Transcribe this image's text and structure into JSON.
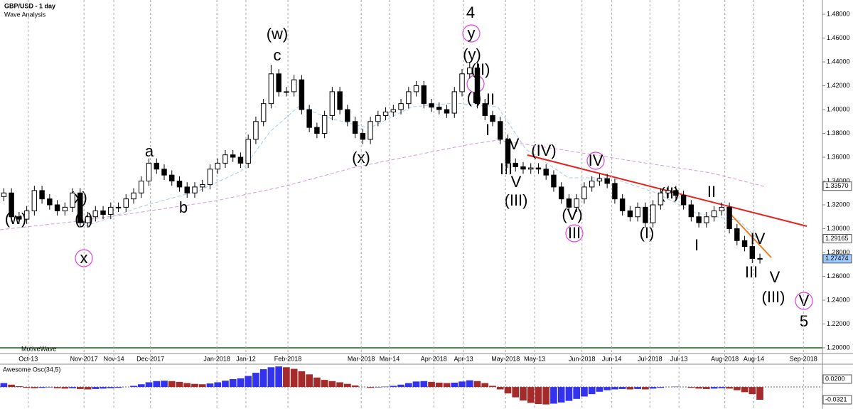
{
  "chart_data": {
    "type": "candlestick",
    "title": "GBP/USD - 1 day",
    "subtitle": "Wave Analysis",
    "watermark": "MotiveWave",
    "up_color": "#ffffff",
    "down_color": "#000000",
    "xlim": [
      -0.5,
      107
    ],
    "xticks": [
      {
        "value": 3.2,
        "label": "Oct-13"
      },
      {
        "value": 10.5,
        "label": "Nov-2017"
      },
      {
        "value": 14.4,
        "label": "Nov-14"
      },
      {
        "value": 19.2,
        "label": "Dec-2017"
      },
      {
        "value": 27.9,
        "label": "Jan-2018"
      },
      {
        "value": 31.7,
        "label": "Jan-12"
      },
      {
        "value": 37.2,
        "label": "Feb-2018"
      },
      {
        "value": 46.8,
        "label": "Mar-2018"
      },
      {
        "value": 50.5,
        "label": "Mar-14"
      },
      {
        "value": 56.3,
        "label": "Apr-2018"
      },
      {
        "value": 60.2,
        "label": "Apr-13"
      },
      {
        "value": 65.7,
        "label": "May-2018"
      },
      {
        "value": 69.5,
        "label": "May-13"
      },
      {
        "value": 75.7,
        "label": "Jun-2018"
      },
      {
        "value": 79.6,
        "label": "Jun-14"
      },
      {
        "value": 84.6,
        "label": "Jul-2018"
      },
      {
        "value": 88.4,
        "label": "Jul-13"
      },
      {
        "value": 94.4,
        "label": "Aug-2018"
      },
      {
        "value": 98.2,
        "label": "Aug-14"
      },
      {
        "value": 104.7,
        "label": "Sep-2018"
      }
    ],
    "ylim": [
      1.1952,
      1.489
    ],
    "yticks": [
      {
        "value": 1.2,
        "label": "1.20000"
      },
      {
        "value": 1.22,
        "label": "1.22000"
      },
      {
        "value": 1.24,
        "label": "1.24000"
      },
      {
        "value": 1.26,
        "label": "1.26000"
      },
      {
        "value": 1.28,
        "label": "1.28000"
      },
      {
        "value": 1.3,
        "label": "1.30000"
      },
      {
        "value": 1.32,
        "label": "1.32000"
      },
      {
        "value": 1.34,
        "label": "1.34000"
      },
      {
        "value": 1.36,
        "label": "1.36000"
      },
      {
        "value": 1.38,
        "label": "1.38000"
      },
      {
        "value": 1.4,
        "label": "1.40000"
      },
      {
        "value": 1.42,
        "label": "1.42000"
      },
      {
        "value": 1.44,
        "label": "1.44000"
      },
      {
        "value": 1.46,
        "label": "1.46000"
      },
      {
        "value": 1.48,
        "label": "1.48000"
      }
    ],
    "price_labels": [
      {
        "value": 1.3357,
        "label": "1.33570",
        "color": "#ffffff"
      },
      {
        "value": 1.29165,
        "label": "1.29165",
        "color": "#ffffff"
      },
      {
        "value": 1.27474,
        "label": "1.27474",
        "color": "#9ecbff"
      }
    ],
    "open": [
      1.327,
      1.33,
      1.31,
      1.308,
      1.315,
      1.332,
      1.325,
      1.32,
      1.315,
      1.318,
      1.33,
      1.305,
      1.31,
      1.315,
      1.312,
      1.318,
      1.318,
      1.325,
      1.33,
      1.34,
      1.355,
      1.35,
      1.345,
      1.34,
      1.335,
      1.33,
      1.335,
      1.337,
      1.35,
      1.355,
      1.362,
      1.36,
      1.355,
      1.375,
      1.39,
      1.405,
      1.43,
      1.415,
      1.415,
      1.425,
      1.4,
      1.385,
      1.38,
      1.395,
      1.415,
      1.4,
      1.39,
      1.38,
      1.375,
      1.39,
      1.395,
      1.398,
      1.4,
      1.405,
      1.415,
      1.42,
      1.405,
      1.402,
      1.4,
      1.397,
      1.415,
      1.43,
      1.435,
      1.405,
      1.395,
      1.39,
      1.375,
      1.355,
      1.352,
      1.35,
      1.351,
      1.35,
      1.345,
      1.335,
      1.325,
      1.318,
      1.325,
      1.335,
      1.34,
      1.342,
      1.338,
      1.325,
      1.315,
      1.31,
      1.318,
      1.305,
      1.32,
      1.33,
      1.332,
      1.328,
      1.32,
      1.31,
      1.305,
      1.31,
      1.315,
      1.318,
      1.3,
      1.29,
      1.285,
      1.275
    ],
    "high": [
      1.334,
      1.334,
      1.314,
      1.319,
      1.336,
      1.336,
      1.329,
      1.324,
      1.322,
      1.334,
      1.334,
      1.314,
      1.319,
      1.319,
      1.322,
      1.322,
      1.329,
      1.334,
      1.344,
      1.359,
      1.359,
      1.354,
      1.349,
      1.344,
      1.339,
      1.339,
      1.341,
      1.354,
      1.359,
      1.366,
      1.366,
      1.364,
      1.379,
      1.394,
      1.409,
      1.4376,
      1.434,
      1.419,
      1.429,
      1.429,
      1.404,
      1.389,
      1.399,
      1.419,
      1.419,
      1.404,
      1.394,
      1.384,
      1.394,
      1.399,
      1.402,
      1.404,
      1.409,
      1.419,
      1.424,
      1.424,
      1.409,
      1.406,
      1.404,
      1.419,
      1.434,
      1.439,
      1.439,
      1.409,
      1.399,
      1.394,
      1.379,
      1.359,
      1.356,
      1.355,
      1.355,
      1.354,
      1.349,
      1.339,
      1.329,
      1.329,
      1.339,
      1.344,
      1.346,
      1.346,
      1.342,
      1.329,
      1.319,
      1.322,
      1.322,
      1.324,
      1.334,
      1.336,
      1.336,
      1.332,
      1.324,
      1.314,
      1.314,
      1.319,
      1.322,
      1.322,
      1.304,
      1.294,
      1.289,
      1.279
    ],
    "low": [
      1.323,
      1.306,
      1.304,
      1.304,
      1.311,
      1.321,
      1.316,
      1.311,
      1.311,
      1.314,
      1.301,
      1.301,
      1.306,
      1.308,
      1.308,
      1.314,
      1.314,
      1.321,
      1.326,
      1.336,
      1.346,
      1.341,
      1.336,
      1.331,
      1.326,
      1.326,
      1.331,
      1.333,
      1.346,
      1.351,
      1.356,
      1.351,
      1.351,
      1.371,
      1.386,
      1.401,
      1.411,
      1.411,
      1.411,
      1.396,
      1.381,
      1.376,
      1.376,
      1.391,
      1.396,
      1.386,
      1.376,
      1.371,
      1.371,
      1.386,
      1.391,
      1.394,
      1.396,
      1.401,
      1.411,
      1.401,
      1.398,
      1.396,
      1.393,
      1.393,
      1.411,
      1.426,
      1.401,
      1.391,
      1.386,
      1.371,
      1.351,
      1.348,
      1.346,
      1.346,
      1.346,
      1.341,
      1.331,
      1.321,
      1.314,
      1.314,
      1.321,
      1.331,
      1.336,
      1.334,
      1.321,
      1.311,
      1.306,
      1.306,
      1.301,
      1.301,
      1.316,
      1.326,
      1.324,
      1.316,
      1.306,
      1.301,
      1.301,
      1.306,
      1.311,
      1.296,
      1.286,
      1.281,
      1.271,
      1.2707
    ],
    "close": [
      1.33,
      1.31,
      1.308,
      1.315,
      1.332,
      1.325,
      1.32,
      1.315,
      1.318,
      1.33,
      1.305,
      1.31,
      1.315,
      1.312,
      1.318,
      1.318,
      1.325,
      1.33,
      1.34,
      1.355,
      1.35,
      1.345,
      1.34,
      1.335,
      1.33,
      1.335,
      1.337,
      1.35,
      1.355,
      1.362,
      1.36,
      1.355,
      1.375,
      1.39,
      1.405,
      1.43,
      1.415,
      1.415,
      1.425,
      1.4,
      1.385,
      1.38,
      1.395,
      1.415,
      1.4,
      1.39,
      1.38,
      1.375,
      1.39,
      1.395,
      1.398,
      1.4,
      1.405,
      1.415,
      1.42,
      1.405,
      1.402,
      1.4,
      1.397,
      1.415,
      1.43,
      1.435,
      1.405,
      1.395,
      1.39,
      1.375,
      1.355,
      1.352,
      1.35,
      1.351,
      1.35,
      1.345,
      1.335,
      1.325,
      1.318,
      1.325,
      1.335,
      1.34,
      1.342,
      1.338,
      1.325,
      1.315,
      1.31,
      1.318,
      1.305,
      1.32,
      1.33,
      1.332,
      1.328,
      1.32,
      1.31,
      1.305,
      1.31,
      1.315,
      1.318,
      1.3,
      1.29,
      1.285,
      1.275,
      1.2747
    ],
    "wave_labels": [
      {
        "text": "(w)",
        "color": "#6a1b6a"
      },
      {
        "text": "(x)",
        "color": "#6a1b6a"
      },
      {
        "text": "(y)",
        "color": "#6a1b6a"
      },
      {
        "text": "x",
        "color": "#e040e0",
        "circled": true
      },
      {
        "text": "a",
        "color": "#1515d0"
      },
      {
        "text": "b",
        "color": "#1515d0"
      },
      {
        "text": "(w)",
        "color": "#6a1b6a"
      },
      {
        "text": "c",
        "color": "#1515d0"
      },
      {
        "text": "(x)",
        "color": "#6a1b6a"
      },
      {
        "text": "4",
        "color": "#b39ddb"
      },
      {
        "text": "y",
        "color": "#e040e0",
        "circled": true
      },
      {
        "text": "(y)",
        "color": "#6a1b6a"
      },
      {
        "text": "(II)",
        "color": "#6a1b6a"
      },
      {
        "text": "I",
        "color": "#e040e0",
        "circled": true
      },
      {
        "text": "(I)",
        "color": "#6a1b6a"
      },
      {
        "text": "II",
        "color": "#1515d0"
      },
      {
        "text": "I",
        "color": "#1515d0"
      },
      {
        "text": "IV",
        "color": "#1515d0"
      },
      {
        "text": "III",
        "color": "#1515d0"
      },
      {
        "text": "V",
        "color": "#1515d0"
      },
      {
        "text": "(III)",
        "color": "#6a1b6a"
      },
      {
        "text": "(IV)",
        "color": "#6a1b6a"
      },
      {
        "text": "IV",
        "color": "#e040e0",
        "circled": true
      },
      {
        "text": "(V)",
        "color": "#6a1b6a"
      },
      {
        "text": "III",
        "color": "#e040e0",
        "circled": true
      },
      {
        "text": "(II)",
        "color": "#6a1b6a"
      },
      {
        "text": "(I)",
        "color": "#6a1b6a"
      },
      {
        "text": "II",
        "color": "#1515d0"
      },
      {
        "text": "I",
        "color": "#1515d0"
      },
      {
        "text": "IV",
        "color": "#1515d0"
      },
      {
        "text": "III",
        "color": "#1515d0"
      },
      {
        "text": "V",
        "color": "#1515d0"
      },
      {
        "text": "(III)",
        "color": "#6a1b6a"
      },
      {
        "text": "V",
        "color": "#e040e0",
        "circled": true
      },
      {
        "text": "5",
        "color": "#b39ddb"
      }
    ],
    "oscillator": {
      "title": "Awesome Osc(34,5)",
      "up_color": "#3333ee",
      "down_color": "#a52a2a",
      "ylim": [
        -0.0465,
        0.0523
      ],
      "yticks": [
        {
          "value": 0.02,
          "label": "0.0200"
        },
        {
          "value": -0.0321,
          "label": "-0.0321"
        }
      ],
      "values": [
        0.01,
        0.006,
        0.002,
        -0.002,
        -0.003,
        -0.002,
        -0.001,
        -0.003,
        -0.004,
        -0.003,
        -0.005,
        -0.006,
        -0.005,
        -0.004,
        -0.003,
        -0.002,
        0.0,
        0.003,
        0.007,
        0.012,
        0.015,
        0.016,
        0.015,
        0.013,
        0.01,
        0.008,
        0.007,
        0.009,
        0.012,
        0.016,
        0.02,
        0.022,
        0.028,
        0.036,
        0.045,
        0.05,
        0.052,
        0.05,
        0.046,
        0.04,
        0.032,
        0.024,
        0.018,
        0.015,
        0.012,
        0.008,
        0.004,
        0.0,
        -0.002,
        -0.001,
        0.001,
        0.003,
        0.006,
        0.01,
        0.014,
        0.015,
        0.013,
        0.011,
        0.01,
        0.011,
        0.014,
        0.017,
        0.015,
        0.01,
        0.003,
        -0.006,
        -0.016,
        -0.026,
        -0.034,
        -0.04,
        -0.043,
        -0.044,
        -0.042,
        -0.039,
        -0.035,
        -0.03,
        -0.024,
        -0.018,
        -0.012,
        -0.008,
        -0.006,
        -0.005,
        -0.006,
        -0.005,
        -0.006,
        -0.004,
        -0.002,
        0.0,
        0.001,
        0.0,
        -0.002,
        -0.004,
        -0.005,
        -0.004,
        -0.003,
        -0.004,
        -0.008,
        -0.013,
        -0.018,
        -0.0321
      ]
    }
  }
}
